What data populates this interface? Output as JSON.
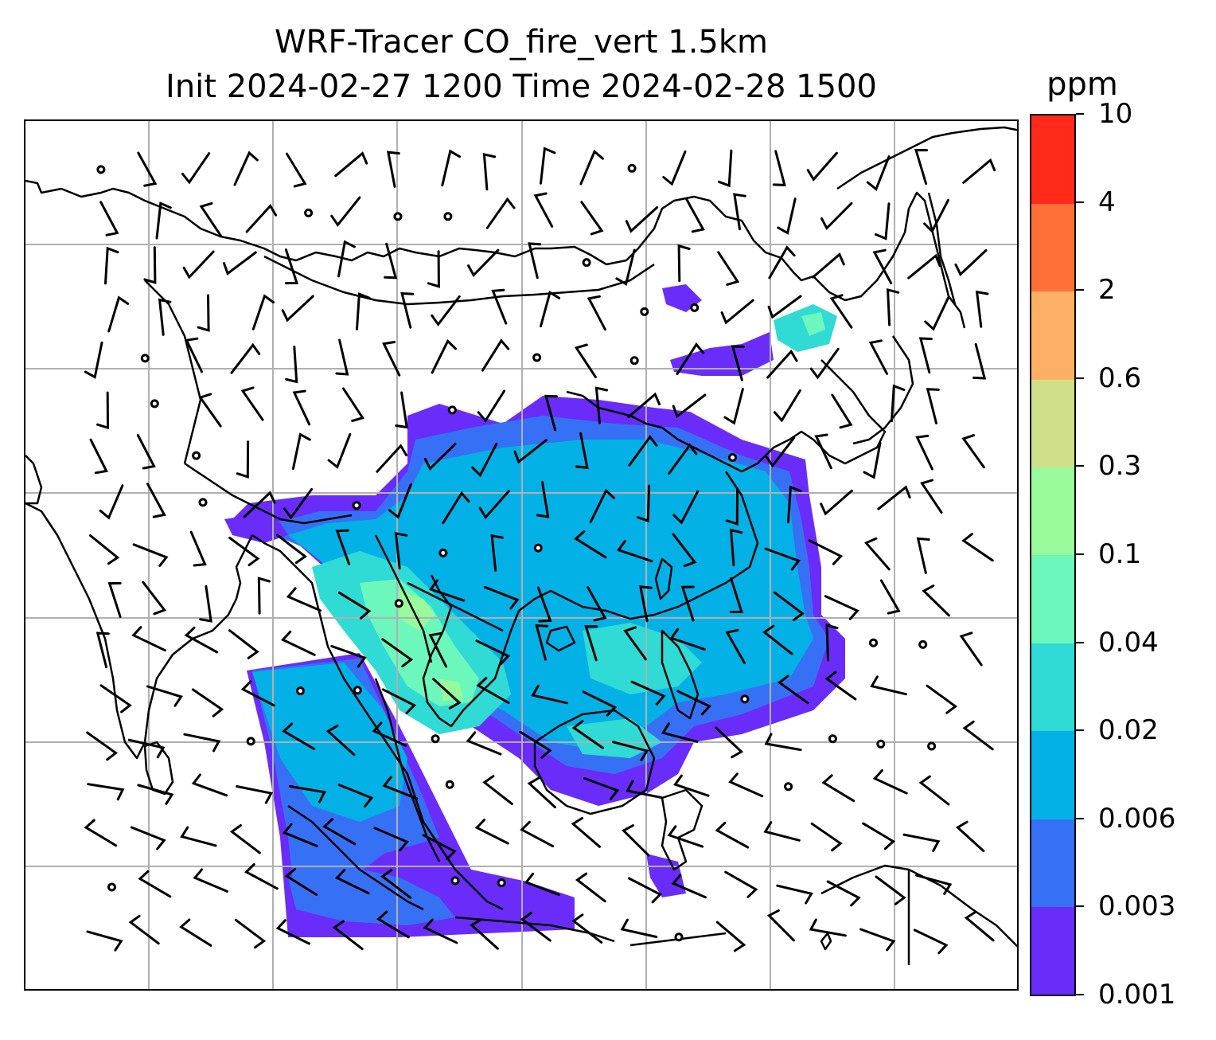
{
  "title": {
    "line1": "WRF-Tracer CO_fire_vert 1.5km",
    "line2": "Init 2024-02-27 1200 Time 2024-02-28 1500"
  },
  "colorbar": {
    "unit": "ppm",
    "levels": [
      "0.001",
      "0.003",
      "0.006",
      "0.02",
      "0.04",
      "0.1",
      "0.3",
      "0.6",
      "2",
      "4",
      "10"
    ],
    "colors": [
      "#6a2cf9",
      "#3671f5",
      "#04b1e6",
      "#2fdbd4",
      "#6cf7bc",
      "#98fa9a",
      "#d0e08a",
      "#fdb065",
      "#ff7039",
      "#ff2a1a"
    ]
  },
  "map": {
    "gridlines": "on",
    "coastline_color": "#000000",
    "grid_color": "#b0b0b0",
    "wind_symbol": "barbs"
  }
}
